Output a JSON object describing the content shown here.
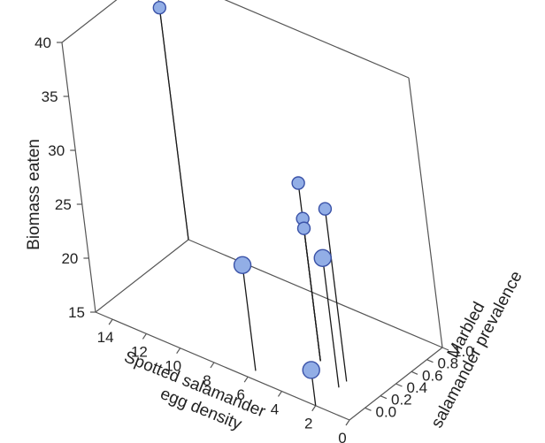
{
  "chart_data": {
    "type": "scatter",
    "subtype": "3d-stem",
    "title": "",
    "zlabel": "Biomass eaten",
    "xlabel_lines": [
      "Spotted salamander",
      "egg density"
    ],
    "ylabel_lines": [
      "Marbled",
      "salamander prevalence"
    ],
    "z_ticks": [
      "40",
      "35",
      "30",
      "25",
      "20",
      "15"
    ],
    "x_ticks": [
      "14",
      "12",
      "10",
      "8",
      "6",
      "4",
      "2",
      "0"
    ],
    "y_ticks": [
      "0.0",
      "0.2",
      "0.4",
      "0.6",
      "0.8",
      "1.0"
    ],
    "zlim": [
      15,
      40
    ],
    "xlim": [
      0,
      15
    ],
    "ylim": [
      -0.2,
      1.0
    ],
    "grid": false,
    "legend": "none",
    "point_color": "#92aee6",
    "point_edge": "#3a52a8",
    "points": [
      {
        "x": 15,
        "y": 1.0,
        "z": 36.5,
        "size": "small"
      },
      {
        "x": 4,
        "y": 0.3,
        "z": 31.5,
        "size": "small"
      },
      {
        "x": 2,
        "y": 0.2,
        "z": 31.0,
        "size": "small"
      },
      {
        "x": 4,
        "y": 0.3,
        "z": 28.2,
        "size": "small"
      },
      {
        "x": 4,
        "y": 0.3,
        "z": 27.3,
        "size": "small"
      },
      {
        "x": 2,
        "y": 0.1,
        "z": 27.0,
        "size": "large"
      },
      {
        "x": 6,
        "y": -0.1,
        "z": 24.8,
        "size": "large"
      },
      {
        "x": 2,
        "y": -0.2,
        "z": 18.3,
        "size": "large"
      }
    ]
  }
}
